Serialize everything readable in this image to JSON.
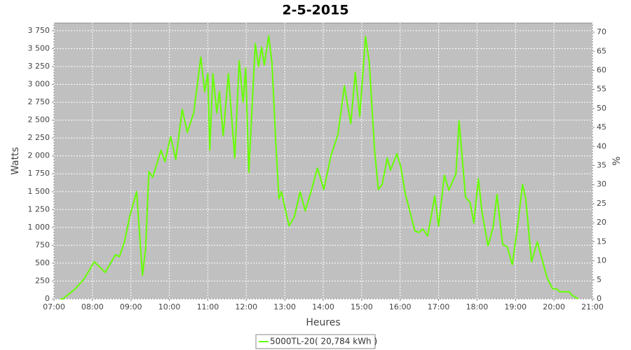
{
  "chart_data": {
    "type": "line",
    "title": "2-5-2015",
    "x_label": "Heures",
    "y_label": "Watts",
    "y2_label": "%",
    "x": [
      "07:10",
      "07:14",
      "07:33",
      "07:47",
      "08:03",
      "08:20",
      "08:36",
      "08:42",
      "08:50",
      "08:58",
      "09:09",
      "09:18",
      "09:23",
      "09:28",
      "09:34",
      "09:47",
      "09:53",
      "10:02",
      "10:10",
      "10:20",
      "10:28",
      "10:38",
      "10:49",
      "10:55",
      "11:00",
      "11:03",
      "11:08",
      "11:14",
      "11:18",
      "11:24",
      "11:32",
      "11:42",
      "11:49",
      "11:55",
      "11:59",
      "12:04",
      "12:14",
      "12:19",
      "12:24",
      "12:28",
      "12:35",
      "12:40",
      "12:46",
      "12:51",
      "12:55",
      "13:02",
      "13:07",
      "13:15",
      "13:24",
      "13:32",
      "13:41",
      "13:51",
      "14:01",
      "14:12",
      "14:23",
      "14:33",
      "14:43",
      "14:50",
      "14:57",
      "15:06",
      "15:12",
      "15:20",
      "15:26",
      "15:32",
      "15:40",
      "15:45",
      "15:55",
      "16:01",
      "16:08",
      "16:16",
      "16:23",
      "16:30",
      "16:35",
      "16:43",
      "16:54",
      "17:00",
      "17:09",
      "17:16",
      "17:27",
      "17:32",
      "17:42",
      "17:49",
      "17:55",
      "18:02",
      "18:08",
      "18:17",
      "18:25",
      "18:31",
      "18:40",
      "18:47",
      "18:55",
      "19:03",
      "19:11",
      "19:16",
      "19:25",
      "19:34",
      "19:40",
      "19:49",
      "19:58",
      "20:04",
      "20:09",
      "20:24",
      "20:28",
      "20:38"
    ],
    "series": [
      {
        "name": "5000TL-20( 20,784 kWh )",
        "color": "#66ff00",
        "values": [
          0,
          0,
          140,
          280,
          520,
          370,
          620,
          590,
          800,
          1150,
          1500,
          330,
          700,
          1780,
          1700,
          2080,
          1920,
          2270,
          1950,
          2650,
          2330,
          2600,
          3380,
          2900,
          3150,
          2080,
          3150,
          2600,
          2900,
          2280,
          3150,
          1970,
          3330,
          2750,
          3230,
          1770,
          3570,
          3250,
          3520,
          3270,
          3680,
          3300,
          2200,
          1400,
          1500,
          1200,
          1020,
          1150,
          1500,
          1230,
          1500,
          1830,
          1530,
          2000,
          2300,
          2980,
          2450,
          3170,
          2550,
          3670,
          3300,
          2100,
          1530,
          1600,
          1970,
          1800,
          2030,
          1850,
          1470,
          1200,
          950,
          930,
          980,
          880,
          1440,
          1020,
          1730,
          1520,
          1750,
          2490,
          1420,
          1350,
          1060,
          1680,
          1200,
          740,
          1000,
          1460,
          760,
          730,
          480,
          1000,
          1600,
          1400,
          520,
          800,
          600,
          300,
          140,
          140,
          100,
          100,
          50,
          0
        ]
      }
    ],
    "xlim": [
      "07:00",
      "21:00"
    ],
    "xticks": [
      "07:00",
      "08:00",
      "09:00",
      "10:00",
      "11:00",
      "12:00",
      "13:00",
      "14:00",
      "15:00",
      "16:00",
      "17:00",
      "18:00",
      "19:00",
      "20:00",
      "21:00"
    ],
    "ylim": [
      0,
      3857
    ],
    "yticks": [
      0,
      250,
      500,
      750,
      {
        "value": 1000,
        "label": "1 000"
      },
      {
        "value": 1250,
        "label": "1 250"
      },
      {
        "value": 1500,
        "label": "1 500"
      },
      {
        "value": 1750,
        "label": "1 750"
      },
      {
        "value": 2000,
        "label": "2 000"
      },
      {
        "value": 2250,
        "label": "2 250"
      },
      {
        "value": 2500,
        "label": "2 500"
      },
      {
        "value": 2750,
        "label": "2 750"
      },
      {
        "value": 3000,
        "label": "3 000"
      },
      {
        "value": 3250,
        "label": "3 250"
      },
      {
        "value": 3500,
        "label": "3 500"
      },
      {
        "value": 3750,
        "label": "3 750"
      }
    ],
    "y2lim": [
      0,
      72.4
    ],
    "y2ticks": [
      0,
      5,
      10,
      15,
      20,
      25,
      30,
      35,
      40,
      45,
      50,
      55,
      60,
      65,
      70
    ],
    "grid": true,
    "legend": "bottom"
  }
}
